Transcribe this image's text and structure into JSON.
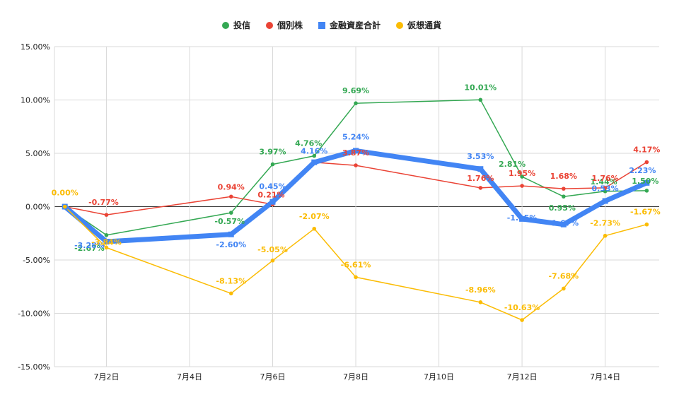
{
  "chart_data": {
    "type": "line",
    "x_dates": [
      1,
      2,
      5,
      6,
      7,
      8,
      11,
      12,
      13,
      14,
      15
    ],
    "x_month_label": "7月",
    "ylim": [
      -15,
      15
    ],
    "y_ticks": [
      15,
      10,
      5,
      0,
      -5,
      -10,
      -15
    ],
    "y_tick_labels": [
      "15.00%",
      "10.00%",
      "5.00%",
      "0.00%",
      "-5.00%",
      "-10.00%",
      "-15.00%"
    ],
    "x_ticks": [
      2,
      4,
      6,
      8,
      10,
      12,
      14
    ],
    "x_tick_labels": [
      "7月2日",
      "7月4日",
      "7月6日",
      "7月8日",
      "7月10日",
      "7月12日",
      "7月14日"
    ],
    "grid": true,
    "legend_position": "top-center",
    "series": [
      {
        "name": "投信",
        "color": "#34a853",
        "width": 1.5,
        "marker": "circle",
        "values": [
          0,
          -2.67,
          -0.57,
          3.97,
          4.76,
          9.69,
          10.01,
          2.81,
          0.95,
          1.44,
          1.5
        ],
        "labels": [
          "",
          "-2.67%",
          "-0.57%",
          "3.97%",
          "4.76%",
          "9.69%",
          "10.01%",
          "2.81%",
          "0.95%",
          "1.44%",
          "1.50%"
        ]
      },
      {
        "name": "個別株",
        "color": "#ea4335",
        "width": 1.5,
        "marker": "circle",
        "values": [
          0,
          -0.77,
          0.94,
          0.21,
          4.16,
          3.87,
          1.76,
          1.95,
          1.68,
          1.76,
          4.17
        ],
        "labels": [
          "",
          "-0.77%",
          "0.94%",
          "0.21%",
          "",
          "3.87%",
          "1.76%",
          "1.95%",
          "1.68%",
          "1.76%",
          "4.17%"
        ]
      },
      {
        "name": "金融資産合計",
        "color": "#4285f4",
        "width": 7,
        "marker": "square",
        "values": [
          0,
          -3.28,
          -2.6,
          0.45,
          4.16,
          5.24,
          3.53,
          -1.15,
          -1.67,
          0.53,
          2.23
        ],
        "labels": [
          "",
          "-3.28%",
          "-2.60%",
          "0.45%",
          "4.16%",
          "5.24%",
          "3.53%",
          "-1.15%",
          "-1.67%",
          "0.53%",
          "2.23%"
        ]
      },
      {
        "name": "仮想通貨",
        "color": "#fbbc04",
        "width": 1.5,
        "marker": "circle",
        "values": [
          0,
          -3.84,
          -8.13,
          -5.05,
          -2.07,
          -6.61,
          -8.96,
          -10.63,
          -7.68,
          -2.73,
          -1.67
        ],
        "labels": [
          "0.00%",
          "-3.84%",
          "-8.13%",
          "-5.05%",
          "-2.07%",
          "-6.61%",
          "-8.96%",
          "-10.63%",
          "-7.68%",
          "-2.73%",
          "-1.67%"
        ]
      }
    ]
  }
}
